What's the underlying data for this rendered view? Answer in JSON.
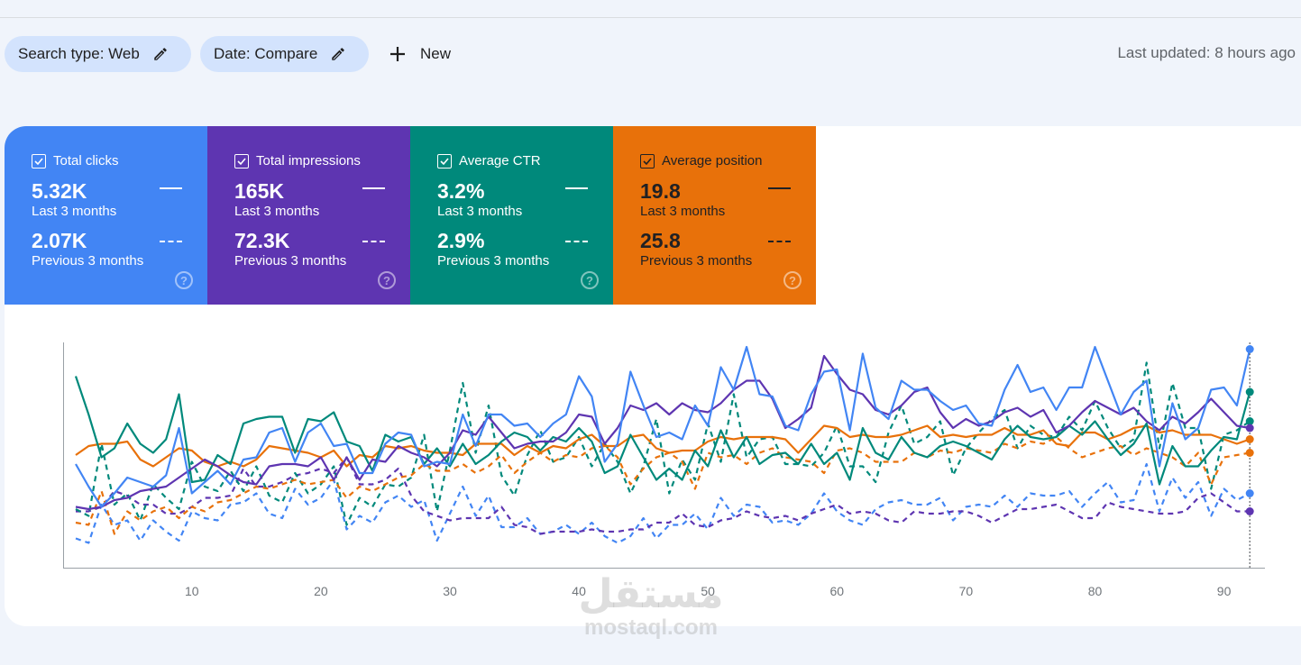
{
  "filters": {
    "search_type": "Search type: Web",
    "date": "Date: Compare",
    "new_label": "New",
    "last_updated": "Last updated: 8 hours ago"
  },
  "metrics": [
    {
      "label": "Total clicks",
      "current": "5.32K",
      "current_period": "Last 3 months",
      "previous": "2.07K",
      "previous_period": "Previous 3 months",
      "color": "#4285f4",
      "checked": true
    },
    {
      "label": "Total impressions",
      "current": "165K",
      "current_period": "Last 3 months",
      "previous": "72.3K",
      "previous_period": "Previous 3 months",
      "color": "#5e35b1",
      "checked": true
    },
    {
      "label": "Average CTR",
      "current": "3.2%",
      "current_period": "Last 3 months",
      "previous": "2.9%",
      "previous_period": "Previous 3 months",
      "color": "#00897b",
      "checked": true
    },
    {
      "label": "Average position",
      "current": "19.8",
      "current_period": "Last 3 months",
      "previous": "25.8",
      "previous_period": "Previous 3 months",
      "color": "#e8710a",
      "checked": true
    }
  ],
  "help_glyph": "?",
  "watermark": {
    "arabic": "مستقل",
    "latin": "mostaql.com"
  },
  "chart_data": {
    "type": "line",
    "x_ticks": [
      "10",
      "20",
      "30",
      "40",
      "50",
      "60",
      "70",
      "80",
      "90"
    ],
    "x_tick_values": [
      10,
      20,
      30,
      40,
      50,
      60,
      70,
      80,
      90
    ],
    "xlim": [
      1,
      92
    ],
    "ylim": [
      0,
      100
    ],
    "y_axis_labels": "hidden (each metric normalized to its own scale)",
    "grid": false,
    "hover_day": 92,
    "series": [
      {
        "name": "Total clicks",
        "period": "Previous 3 months",
        "color": "#4285f4",
        "dashed": true,
        "values": [
          13,
          11,
          28,
          19,
          21,
          12,
          21,
          16,
          12,
          25,
          22,
          21,
          28,
          29,
          33,
          24,
          22,
          35,
          28,
          31,
          39,
          17,
          23,
          20,
          29,
          32,
          27,
          30,
          12,
          24,
          36,
          23,
          32,
          18,
          18,
          22,
          15,
          16,
          19,
          15,
          20,
          14,
          11,
          14,
          22,
          13,
          19,
          19,
          24,
          17,
          31,
          23,
          28,
          27,
          20,
          21,
          19,
          24,
          33,
          25,
          21,
          19,
          26,
          29,
          30,
          28,
          28,
          31,
          21,
          27,
          28,
          27,
          32,
          27,
          33,
          32,
          32,
          34,
          27,
          33,
          38,
          29,
          30,
          46,
          25,
          40,
          31,
          38,
          23,
          35,
          30,
          33
        ]
      },
      {
        "name": "Total impressions",
        "period": "Previous 3 months",
        "color": "#5e35b1",
        "dashed": true,
        "values": [
          25,
          25,
          27,
          34,
          32,
          28,
          28,
          24,
          24,
          27,
          31,
          31,
          32,
          44,
          36,
          36,
          38,
          41,
          42,
          44,
          42,
          49,
          37,
          37,
          39,
          44,
          32,
          25,
          23,
          21,
          22,
          22,
          22,
          27,
          19,
          18,
          15,
          16,
          16,
          16,
          17,
          16,
          16,
          17,
          17,
          20,
          20,
          24,
          19,
          18,
          21,
          22,
          25,
          23,
          22,
          23,
          21,
          24,
          26,
          28,
          24,
          25,
          24,
          21,
          20,
          25,
          24,
          24,
          25,
          25,
          23,
          20,
          23,
          26,
          26,
          27,
          28,
          25,
          22,
          22,
          29,
          27,
          26,
          25,
          24,
          24,
          25,
          31,
          33,
          29,
          25,
          25
        ]
      },
      {
        "name": "Average CTR",
        "period": "Previous 3 months",
        "color": "#00897b",
        "dashed": true,
        "values": [
          26,
          23,
          55,
          28,
          33,
          21,
          37,
          31,
          26,
          47,
          36,
          34,
          43,
          34,
          45,
          32,
          29,
          42,
          33,
          37,
          45,
          19,
          31,
          27,
          37,
          36,
          40,
          59,
          25,
          52,
          82,
          51,
          72,
          41,
          32,
          50,
          61,
          47,
          49,
          58,
          45,
          55,
          47,
          33,
          45,
          66,
          33,
          48,
          39,
          64,
          47,
          77,
          49,
          57,
          58,
          46,
          46,
          45,
          51,
          63,
          45,
          45,
          38,
          60,
          72,
          55,
          58,
          65,
          41,
          53,
          60,
          66,
          70,
          53,
          63,
          59,
          58,
          67,
          61,
          74,
          62,
          53,
          57,
          91,
          53,
          82,
          62,
          62,
          35,
          59,
          61,
          65
        ]
      },
      {
        "name": "Average position",
        "period": "Previous 3 months",
        "color": "#e8710a",
        "dashed": true,
        "values": [
          20,
          19,
          34,
          15,
          25,
          21,
          25,
          27,
          22,
          27,
          25,
          29,
          30,
          33,
          36,
          35,
          37,
          39,
          37,
          38,
          39,
          31,
          36,
          34,
          37,
          40,
          41,
          46,
          43,
          43,
          46,
          42,
          45,
          50,
          42,
          47,
          51,
          47,
          50,
          49,
          53,
          54,
          49,
          37,
          44,
          49,
          51,
          47,
          35,
          51,
          49,
          50,
          46,
          51,
          53,
          49,
          48,
          47,
          42,
          52,
          53,
          51,
          47,
          47,
          47,
          51,
          49,
          52,
          51,
          53,
          52,
          51,
          55,
          53,
          56,
          55,
          58,
          53,
          49,
          51,
          53,
          54,
          50,
          53,
          51,
          49,
          45,
          51,
          37,
          49,
          50,
          51
        ]
      },
      {
        "name": "Average position",
        "period": "Last 3 months",
        "color": "#e8710a",
        "dashed": false,
        "values": [
          50,
          54,
          55,
          55,
          56,
          48,
          45,
          49,
          53,
          52,
          47,
          45,
          47,
          45,
          48,
          54,
          53,
          52,
          51,
          49,
          52,
          45,
          50,
          49,
          54,
          53,
          54,
          52,
          51,
          51,
          50,
          55,
          55,
          55,
          50,
          54,
          51,
          54,
          53,
          57,
          59,
          54,
          54,
          58,
          59,
          53,
          51,
          52,
          52,
          56,
          58,
          57,
          58,
          58,
          58,
          57,
          51,
          57,
          63,
          62,
          58,
          59,
          58,
          58,
          59,
          61,
          63,
          58,
          59,
          58,
          59,
          59,
          62,
          59,
          59,
          61,
          55,
          54,
          60,
          60,
          57,
          59,
          62,
          63,
          60,
          61,
          59,
          59,
          59,
          57,
          55,
          57
        ]
      },
      {
        "name": "Average CTR",
        "period": "Last 3 months",
        "color": "#00897b",
        "dashed": false,
        "values": [
          85,
          68,
          49,
          53,
          64,
          55,
          51,
          57,
          77,
          38,
          39,
          50,
          46,
          64,
          66,
          67,
          67,
          51,
          66,
          65,
          69,
          56,
          54,
          43,
          59,
          56,
          58,
          46,
          53,
          45,
          55,
          46,
          50,
          56,
          60,
          58,
          52,
          58,
          56,
          62,
          56,
          42,
          45,
          59,
          49,
          39,
          44,
          39,
          52,
          45,
          61,
          49,
          58,
          46,
          50,
          51,
          46,
          55,
          46,
          51,
          39,
          62,
          51,
          48,
          58,
          51,
          49,
          54,
          56,
          54,
          51,
          48,
          57,
          63,
          58,
          57,
          58,
          63,
          59,
          65,
          57,
          50,
          55,
          64,
          37,
          54,
          45,
          45,
          52,
          58,
          57,
          78
        ]
      },
      {
        "name": "Total impressions",
        "period": "Last 3 months",
        "color": "#5e35b1",
        "dashed": false,
        "values": [
          27,
          26,
          27,
          30,
          31,
          34,
          35,
          36,
          40,
          44,
          48,
          45,
          41,
          38,
          37,
          45,
          46,
          46,
          45,
          49,
          39,
          49,
          39,
          48,
          47,
          54,
          51,
          49,
          45,
          51,
          61,
          59,
          67,
          60,
          53,
          55,
          56,
          56,
          60,
          68,
          67,
          55,
          62,
          72,
          70,
          73,
          68,
          73,
          70,
          69,
          73,
          79,
          83,
          83,
          75,
          62,
          66,
          71,
          94,
          86,
          79,
          77,
          70,
          68,
          72,
          78,
          80,
          69,
          62,
          66,
          63,
          65,
          69,
          71,
          67,
          70,
          60,
          63,
          69,
          74,
          71,
          68,
          71,
          65,
          61,
          67,
          64,
          69,
          75,
          69,
          63,
          62
        ]
      },
      {
        "name": "Total clicks",
        "period": "Last 3 months",
        "color": "#4285f4",
        "dashed": false,
        "values": [
          46,
          36,
          27,
          33,
          40,
          38,
          36,
          41,
          62,
          33,
          38,
          43,
          37,
          48,
          49,
          60,
          62,
          47,
          60,
          64,
          54,
          55,
          42,
          42,
          55,
          60,
          59,
          45,
          47,
          46,
          68,
          54,
          68,
          68,
          63,
          64,
          58,
          64,
          68,
          85,
          76,
          47,
          55,
          87,
          72,
          58,
          60,
          57,
          72,
          63,
          89,
          79,
          98,
          77,
          76,
          63,
          61,
          77,
          87,
          88,
          61,
          95,
          71,
          66,
          83,
          79,
          79,
          74,
          70,
          72,
          64,
          63,
          79,
          90,
          78,
          80,
          70,
          80,
          80,
          98,
          83,
          68,
          78,
          83,
          45,
          73,
          57,
          62,
          79,
          80,
          72,
          97
        ]
      }
    ]
  }
}
